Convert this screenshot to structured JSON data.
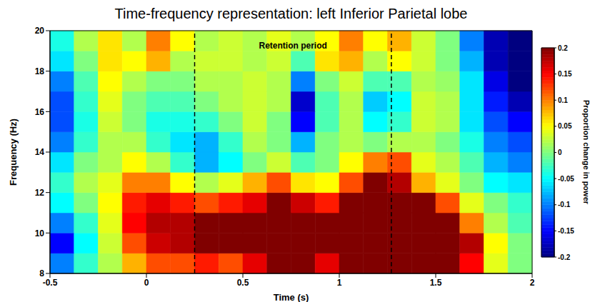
{
  "chart_data": {
    "type": "heatmap",
    "title": "Time-frequency representation: left Inferior Parietal lobe",
    "xlabel": "Time (s)",
    "ylabel": "Frequency (Hz)",
    "xlim": [
      -0.5,
      2
    ],
    "xticks": [
      -0.5,
      0,
      0.5,
      1,
      1.5,
      2
    ],
    "ylim": [
      8,
      20
    ],
    "yticks": [
      8,
      10,
      12,
      14,
      16,
      18,
      20
    ],
    "annotation": "Retention period",
    "vlines": [
      0.25,
      1.27
    ],
    "colorbar_label": "Proportion change in power",
    "clim": [
      -0.2,
      0.2
    ],
    "cticks": [
      -0.2,
      -0.15,
      -0.1,
      -0.05,
      0,
      0.05,
      0.1,
      0.15,
      0.2
    ],
    "x_edges": [
      -0.5,
      -0.375,
      -0.25,
      -0.125,
      0,
      0.125,
      0.25,
      0.375,
      0.5,
      0.625,
      0.75,
      0.875,
      1,
      1.125,
      1.25,
      1.375,
      1.5,
      1.625,
      1.75,
      1.875,
      2
    ],
    "y_edges": [
      8,
      9,
      10,
      11,
      12,
      13,
      14,
      15,
      16,
      17,
      18,
      19,
      20
    ],
    "z": [
      [
        -0.1,
        -0.03,
        0.02,
        0.08,
        0.12,
        0.12,
        0.14,
        0.12,
        0.16,
        0.22,
        0.22,
        0.16,
        0.2,
        0.22,
        0.22,
        0.22,
        0.2,
        0.15,
        0.04,
        0.0
      ],
      [
        -0.15,
        -0.05,
        0.03,
        0.12,
        0.17,
        0.18,
        0.22,
        0.2,
        0.22,
        0.25,
        0.25,
        0.2,
        0.25,
        0.25,
        0.25,
        0.25,
        0.24,
        0.18,
        0.05,
        0.0
      ],
      [
        -0.1,
        -0.03,
        0.04,
        0.15,
        0.18,
        0.18,
        0.22,
        0.22,
        0.22,
        0.25,
        0.25,
        0.2,
        0.25,
        0.25,
        0.25,
        0.25,
        0.22,
        0.1,
        0.02,
        -0.02
      ],
      [
        -0.05,
        0.0,
        0.05,
        0.14,
        0.16,
        0.14,
        0.12,
        0.14,
        0.16,
        0.2,
        0.17,
        0.14,
        0.22,
        0.25,
        0.25,
        0.2,
        0.12,
        0.04,
        0.0,
        -0.03
      ],
      [
        -0.03,
        0.02,
        0.04,
        0.1,
        0.1,
        0.05,
        0.02,
        0.04,
        0.08,
        0.12,
        0.06,
        0.05,
        0.12,
        0.2,
        0.18,
        0.08,
        0.04,
        0.0,
        -0.05,
        -0.06
      ],
      [
        -0.06,
        0.0,
        0.02,
        0.05,
        0.02,
        -0.03,
        -0.08,
        -0.05,
        0.0,
        0.03,
        -0.02,
        0.0,
        0.05,
        0.1,
        0.12,
        0.04,
        0.02,
        -0.02,
        -0.08,
        -0.1
      ],
      [
        -0.1,
        -0.03,
        0.02,
        0.02,
        -0.03,
        -0.06,
        -0.08,
        -0.03,
        0.02,
        0.0,
        -0.08,
        0.0,
        0.02,
        0.0,
        0.02,
        0.02,
        0.0,
        -0.04,
        -0.1,
        -0.12
      ],
      [
        -0.12,
        -0.04,
        0.03,
        0.0,
        -0.04,
        -0.04,
        -0.03,
        0.0,
        0.03,
        0.0,
        -0.15,
        -0.02,
        0.02,
        -0.05,
        -0.03,
        0.03,
        0.02,
        -0.06,
        -0.12,
        -0.15
      ],
      [
        -0.12,
        -0.03,
        0.04,
        0.0,
        -0.02,
        -0.02,
        0.0,
        0.02,
        0.03,
        0.02,
        -0.17,
        -0.02,
        0.02,
        -0.07,
        -0.05,
        0.03,
        0.02,
        -0.06,
        -0.14,
        -0.18
      ],
      [
        -0.1,
        -0.02,
        0.05,
        0.02,
        0.0,
        0.0,
        0.02,
        0.02,
        0.03,
        0.02,
        -0.1,
        0.0,
        0.03,
        -0.02,
        -0.02,
        0.02,
        0.01,
        -0.06,
        -0.16,
        -0.2
      ],
      [
        -0.06,
        0.0,
        0.06,
        0.05,
        0.08,
        0.02,
        0.03,
        0.03,
        0.02,
        0.03,
        -0.02,
        0.06,
        0.08,
        0.02,
        0.05,
        0.03,
        0.0,
        -0.08,
        -0.18,
        -0.2
      ],
      [
        -0.04,
        0.02,
        0.06,
        0.02,
        0.1,
        0.05,
        0.02,
        0.03,
        0.02,
        0.04,
        0.02,
        0.05,
        0.1,
        0.05,
        0.08,
        0.03,
        0.0,
        -0.1,
        -0.18,
        -0.2
      ]
    ]
  }
}
